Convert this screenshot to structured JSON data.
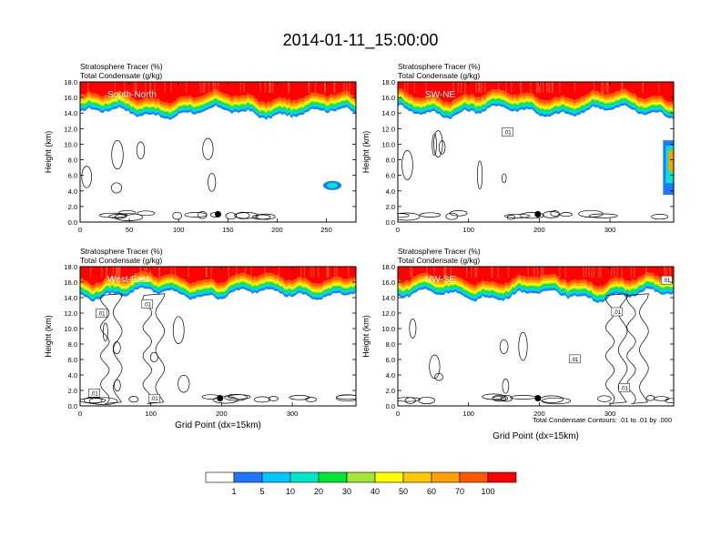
{
  "figure_title": "2014-01-11_15:00:00",
  "footnote": "Total Condensate Contours: .01 to .01 by .000",
  "colors": {
    "scale": [
      "#ffffff",
      "#1e78ff",
      "#00c8ff",
      "#00e6c8",
      "#00e632",
      "#a0e632",
      "#ffff00",
      "#ffc800",
      "#ffa000",
      "#ff5a00",
      "#ff0000"
    ],
    "contour": "#000000",
    "marker": "#000000"
  },
  "colorbar": {
    "labels": [
      "1",
      "5",
      "10",
      "20",
      "30",
      "40",
      "50",
      "60",
      "70",
      "100"
    ]
  },
  "chart_data": [
    {
      "type": "heatmap",
      "title": "South-North",
      "title_left_1": "Stratosphere Tracer   (%)",
      "title_left_2": "Total Condensate   (g/kg)",
      "ylabel": "Height (km)",
      "xlabel": "",
      "xlim": [
        0,
        280
      ],
      "ylim": [
        0,
        18
      ],
      "xticks": [
        "0",
        "50",
        "100",
        "150",
        "200",
        "250"
      ],
      "xtick_values": [
        0,
        50,
        100,
        150,
        200,
        250
      ],
      "yticks": [
        "0.0",
        "2.0",
        "4.0",
        "6.0",
        "8.0",
        "10.0",
        "12.0",
        "14.0",
        "16.0",
        "18.0"
      ],
      "marker_x": 140,
      "tracer_base_km": 14.0,
      "contour_labels": []
    },
    {
      "type": "heatmap",
      "title": "SW-NE",
      "title_left_1": "Stratosphere Tracer   (%)",
      "title_left_2": "Total Condensate   (g/kg)",
      "ylabel": "Height (km)",
      "xlabel": "",
      "xlim": [
        0,
        390
      ],
      "ylim": [
        0,
        18
      ],
      "xticks": [
        "0",
        "100",
        "200",
        "300"
      ],
      "xtick_values": [
        0,
        100,
        200,
        300
      ],
      "yticks": [
        "0.0",
        "2.0",
        "4.0",
        "6.0",
        "8.0",
        "10.0",
        "12.0",
        "14.0",
        "16.0",
        "18.0"
      ],
      "marker_x": 198,
      "tracer_base_km": 14.2,
      "contour_labels": [
        ".01"
      ]
    },
    {
      "type": "heatmap",
      "title": "West-East",
      "title_left_1": "Stratosphere Tracer   (%)",
      "title_left_2": "Total Condensate   (g/kg)",
      "ylabel": "Height (km)",
      "xlabel": "Grid Point (dx=15km)",
      "xlim": [
        0,
        390
      ],
      "ylim": [
        0,
        18
      ],
      "xticks": [
        "0",
        "100",
        "200",
        "300"
      ],
      "xtick_values": [
        0,
        100,
        200,
        300
      ],
      "yticks": [
        "0.0",
        "2.0",
        "4.0",
        "6.0",
        "8.0",
        "10.0",
        "12.0",
        "14.0",
        "16.0",
        "18.0"
      ],
      "marker_x": 198,
      "tracer_base_km": 14.5,
      "contour_labels": [
        ".01",
        ".01",
        ".01",
        ".01"
      ]
    },
    {
      "type": "heatmap",
      "title": "NW-SE",
      "title_left_1": "Stratosphere Tracer   (%)",
      "title_left_2": "Total Condensate   (g/kg)",
      "ylabel": "Height (km)",
      "xlabel": "Grid Point (dx=15km)",
      "xlim": [
        0,
        390
      ],
      "ylim": [
        0,
        18
      ],
      "xticks": [
        "0",
        "100",
        "200",
        "300"
      ],
      "xtick_values": [
        0,
        100,
        200,
        300
      ],
      "yticks": [
        "0.0",
        "2.0",
        "4.0",
        "6.0",
        "8.0",
        "10.0",
        "12.0",
        "14.0",
        "16.0",
        "18.0"
      ],
      "marker_x": 198,
      "tracer_base_km": 14.3,
      "contour_labels": [
        ".01",
        ".01",
        ".01",
        ".01"
      ]
    }
  ]
}
